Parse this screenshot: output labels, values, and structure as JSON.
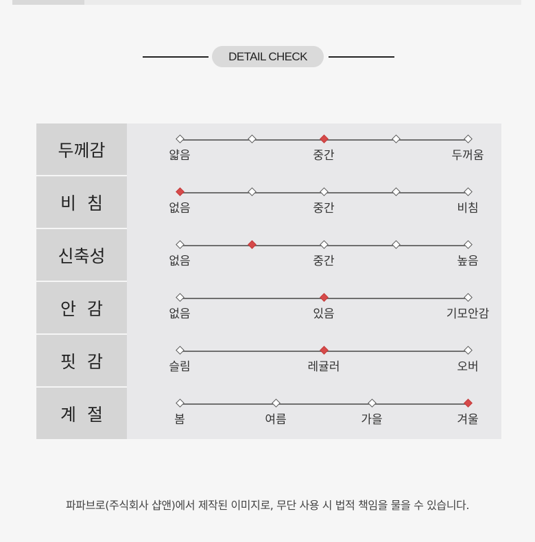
{
  "heading": {
    "title": "DETAIL CHECK"
  },
  "rows": [
    {
      "label": "두께감",
      "options": [
        "얇음",
        "",
        "중간",
        "",
        "두꺼움"
      ],
      "selected_index": 2
    },
    {
      "label": "비  침",
      "options": [
        "없음",
        "",
        "중간",
        "",
        "비침"
      ],
      "selected_index": 0
    },
    {
      "label": "신축성",
      "options": [
        "없음",
        "",
        "중간",
        "",
        "높음"
      ],
      "selected_index": 1
    },
    {
      "label": "안  감",
      "options": [
        "없음",
        "있음",
        "기모안감"
      ],
      "selected_index": 1
    },
    {
      "label": "핏  감",
      "options": [
        "슬림",
        "레귤러",
        "오버"
      ],
      "selected_index": 1
    },
    {
      "label": "계  절",
      "options": [
        "봄",
        "여름",
        "가을",
        "겨울"
      ],
      "selected_index": 3
    }
  ],
  "footer": {
    "notice": "파파브로(주식회사 샵앤)에서 제작된 이미지로, 무단 사용 시 법적 책임을 물을 수 있습니다."
  },
  "colors": {
    "selected": "#d64a4a",
    "label_bg": "#d5d5d5",
    "table_bg": "#e8e8ea"
  }
}
